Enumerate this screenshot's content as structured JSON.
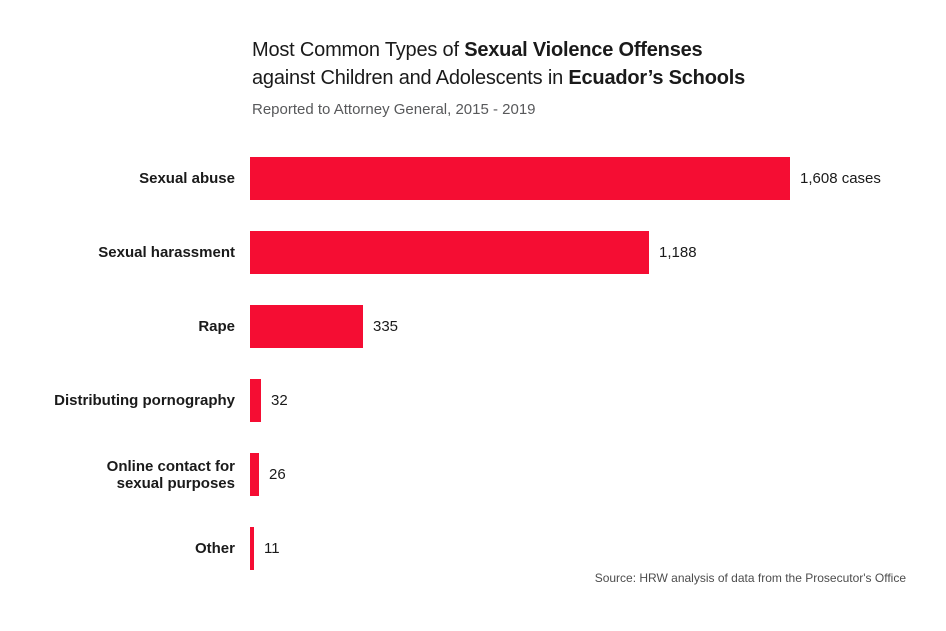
{
  "header": {
    "title_line1_regular": "Most Common Types of ",
    "title_line1_bold": "Sexual Violence Offenses",
    "title_line2_regular": "against Children and Adolescents in ",
    "title_line2_bold": "Ecuador’s Schools",
    "subtitle": "Reported to Attorney General, 2015 - 2019"
  },
  "footer": {
    "source": "Source: HRW analysis of data from the Prosecutor's Office"
  },
  "colors": {
    "bar": "#f50d33",
    "title_text": "#1a1a1a",
    "subtitle_text": "#58595b",
    "source_text": "#4d4d4d"
  },
  "chart_data": {
    "type": "bar",
    "orientation": "horizontal",
    "title": "Most Common Types of Sexual Violence Offenses against Children and Adolescents in Ecuador’s Schools",
    "subtitle": "Reported to Attorney General, 2015 - 2019",
    "categories": [
      "Sexual abuse",
      "Sexual harassment",
      "Rape",
      "Distributing pornography",
      "Online contact for\nsexual purposes",
      "Other"
    ],
    "values": [
      1608,
      1188,
      335,
      32,
      26,
      11
    ],
    "value_labels": [
      "1,608 cases",
      "1,188",
      "335",
      "32",
      "26",
      "11"
    ],
    "xlim": [
      0,
      1608
    ],
    "grid": false,
    "axis_ticks_visible": false,
    "legend": "none",
    "bar_color": "#f50d33",
    "source": "Source: HRW analysis of data from the Prosecutor's Office"
  }
}
